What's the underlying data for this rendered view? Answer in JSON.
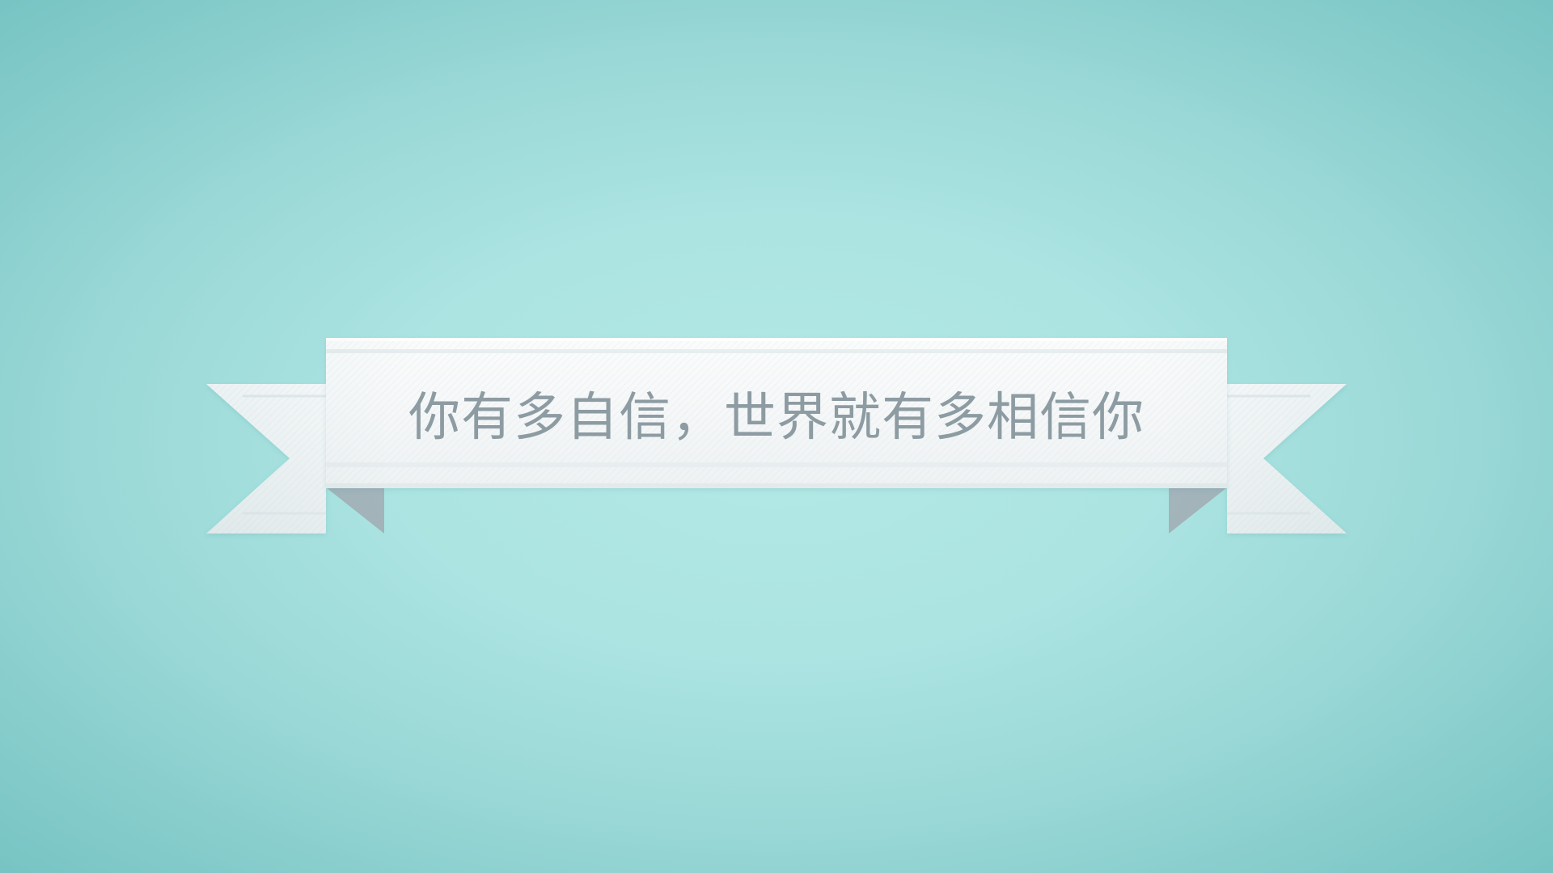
{
  "slide": {
    "text": "你有多自信，世界就有多相信你"
  },
  "colors": {
    "background": "#a9e3e1",
    "background_edge": "#8fd6d6",
    "ribbon": "#f6f8f9",
    "ribbon_shadow": "#a4b4bb",
    "text": "#8d9ca2"
  }
}
